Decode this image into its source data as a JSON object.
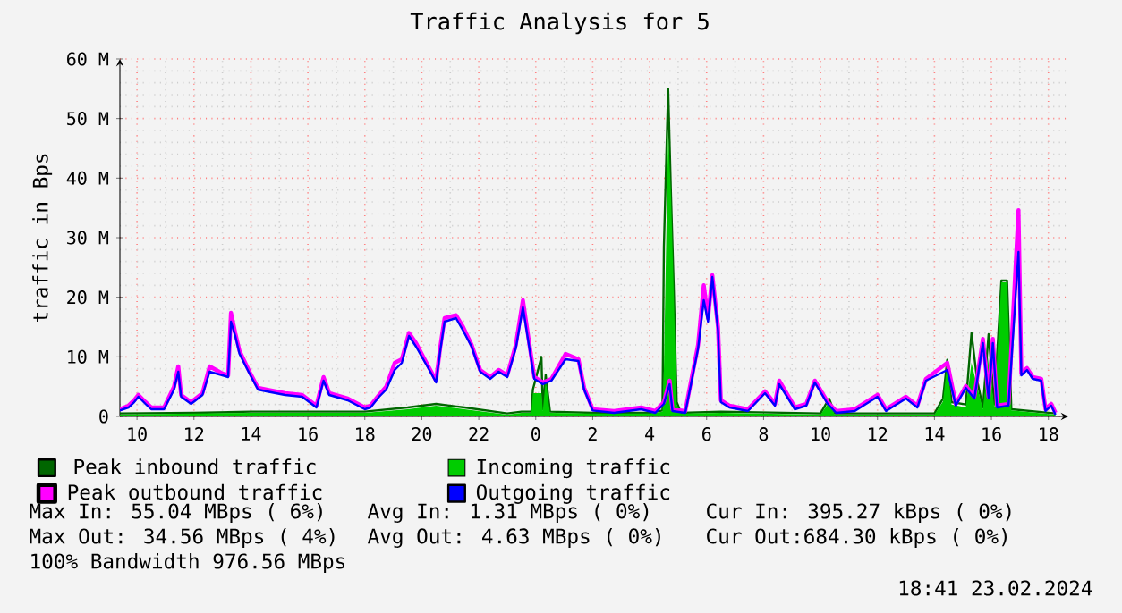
{
  "chart_data": {
    "type": "line",
    "title": "Traffic Analysis for 5",
    "ylabel": "traffic in Bps",
    "xlim": [
      "2024-02-22T09:24",
      "2024-02-23T18:42"
    ],
    "ylim": [
      0,
      60
    ],
    "xticks": [
      {
        "value": "2024-02-22T10:00",
        "label": "10"
      },
      {
        "value": "2024-02-22T12:00",
        "label": "12"
      },
      {
        "value": "2024-02-22T14:00",
        "label": "14"
      },
      {
        "value": "2024-02-22T16:00",
        "label": "16"
      },
      {
        "value": "2024-02-22T18:00",
        "label": "18"
      },
      {
        "value": "2024-02-22T20:00",
        "label": "20"
      },
      {
        "value": "2024-02-22T22:00",
        "label": "22"
      },
      {
        "value": "2024-02-23T00:00",
        "label": "0"
      },
      {
        "value": "2024-02-23T02:00",
        "label": "2"
      },
      {
        "value": "2024-02-23T04:00",
        "label": "4"
      },
      {
        "value": "2024-02-23T06:00",
        "label": "6"
      },
      {
        "value": "2024-02-23T08:00",
        "label": "8"
      },
      {
        "value": "2024-02-23T10:00",
        "label": "10"
      },
      {
        "value": "2024-02-23T12:00",
        "label": "12"
      },
      {
        "value": "2024-02-23T14:00",
        "label": "14"
      },
      {
        "value": "2024-02-23T16:00",
        "label": "16"
      },
      {
        "value": "2024-02-23T18:00",
        "label": "18"
      }
    ],
    "yticks": [
      0,
      {
        "value": 10,
        "label": "10 M"
      },
      {
        "value": 20,
        "label": "20 M"
      },
      {
        "value": 30,
        "label": "30 M"
      },
      {
        "value": 40,
        "label": "40 M"
      },
      {
        "value": 50,
        "label": "50 M"
      },
      {
        "value": 60,
        "label": "60 M"
      }
    ],
    "grid": true,
    "legend": "bottom",
    "series": [
      {
        "name": "Peak inbound traffic",
        "color": "#006600",
        "x": [
          "2024-02-22T09:24",
          "2024-02-22T12:00",
          "2024-02-22T14:00",
          "2024-02-22T18:00",
          "2024-02-22T19:30",
          "2024-02-22T20:30",
          "2024-02-22T21:30",
          "2024-02-22T23:00",
          "2024-02-22T23:30",
          "2024-02-22T23:51",
          "2024-02-22T23:54",
          "2024-02-23T00:12",
          "2024-02-23T00:15",
          "2024-02-23T00:21",
          "2024-02-23T00:30",
          "2024-02-23T02:00",
          "2024-02-23T04:00",
          "2024-02-23T04:27",
          "2024-02-23T04:30",
          "2024-02-23T04:39",
          "2024-02-23T04:45",
          "2024-02-23T04:51",
          "2024-02-23T04:57",
          "2024-02-23T05:06",
          "2024-02-23T06:30",
          "2024-02-23T10:00",
          "2024-02-23T10:18",
          "2024-02-23T10:30",
          "2024-02-23T14:00",
          "2024-02-23T14:18",
          "2024-02-23T14:27",
          "2024-02-23T14:36",
          "2024-02-23T15:06",
          "2024-02-23T15:18",
          "2024-02-23T15:30",
          "2024-02-23T15:42",
          "2024-02-23T15:54",
          "2024-02-23T16:06",
          "2024-02-23T16:21",
          "2024-02-23T16:33",
          "2024-02-23T16:42",
          "2024-02-23T18:15"
        ],
        "values": [
          0.5,
          0.6,
          0.8,
          0.8,
          1.5,
          2.1,
          1.5,
          0.5,
          0.8,
          0.8,
          4.5,
          10,
          1.2,
          7,
          0.8,
          0.6,
          0.6,
          1,
          28.5,
          55,
          37,
          21,
          2.4,
          0.6,
          0.8,
          0.5,
          3,
          0.5,
          0.5,
          3,
          9.5,
          2.4,
          2,
          14,
          6,
          1.5,
          13.8,
          2,
          22.8,
          22.8,
          1.2,
          0.5
        ]
      },
      {
        "name": "Incoming traffic",
        "type": "area",
        "color": "#00cc00",
        "x": [
          "2024-02-22T09:24",
          "2024-02-22T12:00",
          "2024-02-22T14:00",
          "2024-02-22T18:00",
          "2024-02-22T19:30",
          "2024-02-22T20:30",
          "2024-02-22T21:30",
          "2024-02-22T23:00",
          "2024-02-22T23:30",
          "2024-02-22T23:51",
          "2024-02-22T23:54",
          "2024-02-23T00:12",
          "2024-02-23T00:15",
          "2024-02-23T00:21",
          "2024-02-23T00:30",
          "2024-02-23T02:00",
          "2024-02-23T04:00",
          "2024-02-23T04:27",
          "2024-02-23T04:30",
          "2024-02-23T04:39",
          "2024-02-23T04:45",
          "2024-02-23T04:51",
          "2024-02-23T04:57",
          "2024-02-23T05:06",
          "2024-02-23T06:30",
          "2024-02-23T10:00",
          "2024-02-23T10:18",
          "2024-02-23T10:30",
          "2024-02-23T14:00",
          "2024-02-23T14:18",
          "2024-02-23T14:27",
          "2024-02-23T14:36",
          "2024-02-23T15:06",
          "2024-02-23T15:18",
          "2024-02-23T15:30",
          "2024-02-23T15:42",
          "2024-02-23T15:54",
          "2024-02-23T16:06",
          "2024-02-23T16:21",
          "2024-02-23T16:33",
          "2024-02-23T16:42",
          "2024-02-23T18:15"
        ],
        "values": [
          0.3,
          0.5,
          0.6,
          0.6,
          1.2,
          1.8,
          1.2,
          0.3,
          0.6,
          0.6,
          3.9,
          3.9,
          0.9,
          6,
          0.6,
          0.5,
          0.5,
          0.8,
          7.8,
          48,
          37,
          20,
          2,
          0.5,
          0.6,
          0.3,
          2.4,
          0.3,
          0.3,
          2.5,
          9,
          2,
          1.5,
          9,
          5,
          1.2,
          9.9,
          1.5,
          22.5,
          22.5,
          1,
          0.3
        ]
      },
      {
        "name": "Peak outbound traffic",
        "color": "#ff00ff",
        "x": [
          "2024-02-22T09:24",
          "2024-02-22T09:42",
          "2024-02-22T09:54",
          "2024-02-22T10:03",
          "2024-02-22T10:18",
          "2024-02-22T10:30",
          "2024-02-22T10:57",
          "2024-02-22T11:18",
          "2024-02-22T11:27",
          "2024-02-22T11:33",
          "2024-02-22T11:54",
          "2024-02-22T12:18",
          "2024-02-22T12:33",
          "2024-02-22T13:00",
          "2024-02-22T13:12",
          "2024-02-22T13:18",
          "2024-02-22T13:27",
          "2024-02-22T13:36",
          "2024-02-22T13:57",
          "2024-02-22T14:15",
          "2024-02-22T14:33",
          "2024-02-22T15:12",
          "2024-02-22T15:48",
          "2024-02-22T16:18",
          "2024-02-22T16:33",
          "2024-02-22T16:45",
          "2024-02-22T17:24",
          "2024-02-22T18:00",
          "2024-02-22T18:12",
          "2024-02-22T18:30",
          "2024-02-22T18:45",
          "2024-02-22T19:03",
          "2024-02-22T19:18",
          "2024-02-22T19:33",
          "2024-02-22T19:48",
          "2024-02-22T20:03",
          "2024-02-22T20:18",
          "2024-02-22T20:30",
          "2024-02-22T20:39",
          "2024-02-22T20:48",
          "2024-02-22T21:12",
          "2024-02-22T21:27",
          "2024-02-22T21:45",
          "2024-02-22T22:03",
          "2024-02-22T22:24",
          "2024-02-22T22:42",
          "2024-02-22T23:00",
          "2024-02-22T23:18",
          "2024-02-22T23:33",
          "2024-02-22T23:45",
          "2024-02-22T23:57",
          "2024-02-23T00:15",
          "2024-02-23T00:33",
          "2024-02-23T01:03",
          "2024-02-23T01:30",
          "2024-02-23T01:42",
          "2024-02-23T02:00",
          "2024-02-23T02:45",
          "2024-02-23T03:42",
          "2024-02-23T04:12",
          "2024-02-23T04:30",
          "2024-02-23T04:42",
          "2024-02-23T04:48",
          "2024-02-23T05:15",
          "2024-02-23T05:42",
          "2024-02-23T05:54",
          "2024-02-23T06:03",
          "2024-02-23T06:12",
          "2024-02-23T06:24",
          "2024-02-23T06:30",
          "2024-02-23T06:48",
          "2024-02-23T07:27",
          "2024-02-23T08:03",
          "2024-02-23T08:24",
          "2024-02-23T08:33",
          "2024-02-23T09:06",
          "2024-02-23T09:30",
          "2024-02-23T09:48",
          "2024-02-23T10:15",
          "2024-02-23T10:33",
          "2024-02-23T11:12",
          "2024-02-23T12:00",
          "2024-02-23T12:18",
          "2024-02-23T13:00",
          "2024-02-23T13:24",
          "2024-02-23T13:42",
          "2024-02-23T14:27",
          "2024-02-23T14:45",
          "2024-02-23T15:06",
          "2024-02-23T15:24",
          "2024-02-23T15:42",
          "2024-02-23T15:54",
          "2024-02-23T16:03",
          "2024-02-23T16:12",
          "2024-02-23T16:36",
          "2024-02-23T16:57",
          "2024-02-23T17:03",
          "2024-02-23T17:15",
          "2024-02-23T17:27",
          "2024-02-23T17:45",
          "2024-02-23T17:54",
          "2024-02-23T18:06",
          "2024-02-23T18:15"
        ],
        "values": [
          1.2,
          1.8,
          2.7,
          3.6,
          2.4,
          1.5,
          1.5,
          5,
          8.4,
          3.6,
          2.4,
          3.9,
          8.4,
          7.2,
          6.9,
          17.4,
          14,
          11,
          7.5,
          4.8,
          4.5,
          3.9,
          3.6,
          1.8,
          6.6,
          3.9,
          3,
          1.5,
          1.8,
          3.6,
          5,
          9,
          9.6,
          14,
          12.3,
          10,
          7.8,
          6,
          11.7,
          16.5,
          17,
          15,
          12,
          7.8,
          6.6,
          7.8,
          6.9,
          12,
          19.5,
          13,
          6.6,
          5.7,
          6.3,
          10.5,
          9.6,
          4.8,
          1.2,
          0.9,
          1.5,
          0.9,
          2.4,
          6,
          1.2,
          0.9,
          12,
          22,
          16.5,
          23.7,
          15,
          2.7,
          1.8,
          1.2,
          4.2,
          2.1,
          6,
          1.5,
          2.1,
          6,
          2.4,
          0.9,
          1.2,
          3.6,
          1.2,
          3.3,
          1.8,
          6.3,
          9,
          2.1,
          5.1,
          3.3,
          13,
          3.3,
          13,
          1.8,
          2.1,
          34.6,
          7.2,
          8.1,
          6.6,
          6.3,
          1.2,
          2.1,
          0.6
        ]
      },
      {
        "name": "Outgoing traffic",
        "color": "#0000ff",
        "x": [
          "2024-02-22T09:24",
          "2024-02-22T09:42",
          "2024-02-22T09:54",
          "2024-02-22T10:03",
          "2024-02-22T10:18",
          "2024-02-22T10:30",
          "2024-02-22T10:57",
          "2024-02-22T11:18",
          "2024-02-22T11:27",
          "2024-02-22T11:33",
          "2024-02-22T11:54",
          "2024-02-22T12:18",
          "2024-02-22T12:33",
          "2024-02-22T13:00",
          "2024-02-22T13:12",
          "2024-02-22T13:18",
          "2024-02-22T13:27",
          "2024-02-22T13:36",
          "2024-02-22T13:57",
          "2024-02-22T14:15",
          "2024-02-22T14:33",
          "2024-02-22T15:12",
          "2024-02-22T15:48",
          "2024-02-22T16:18",
          "2024-02-22T16:33",
          "2024-02-22T16:45",
          "2024-02-22T17:24",
          "2024-02-22T18:00",
          "2024-02-22T18:12",
          "2024-02-22T18:30",
          "2024-02-22T18:45",
          "2024-02-22T19:03",
          "2024-02-22T19:18",
          "2024-02-22T19:33",
          "2024-02-22T19:48",
          "2024-02-22T20:03",
          "2024-02-22T20:18",
          "2024-02-22T20:30",
          "2024-02-22T20:39",
          "2024-02-22T20:48",
          "2024-02-22T21:12",
          "2024-02-22T21:27",
          "2024-02-22T21:45",
          "2024-02-22T22:03",
          "2024-02-22T22:24",
          "2024-02-22T22:42",
          "2024-02-22T23:00",
          "2024-02-22T23:18",
          "2024-02-22T23:33",
          "2024-02-22T23:45",
          "2024-02-22T23:57",
          "2024-02-23T00:15",
          "2024-02-23T00:33",
          "2024-02-23T01:03",
          "2024-02-23T01:30",
          "2024-02-23T01:42",
          "2024-02-23T02:00",
          "2024-02-23T02:45",
          "2024-02-23T03:42",
          "2024-02-23T04:12",
          "2024-02-23T04:30",
          "2024-02-23T04:42",
          "2024-02-23T04:48",
          "2024-02-23T05:15",
          "2024-02-23T05:42",
          "2024-02-23T05:54",
          "2024-02-23T06:03",
          "2024-02-23T06:12",
          "2024-02-23T06:24",
          "2024-02-23T06:30",
          "2024-02-23T06:48",
          "2024-02-23T07:27",
          "2024-02-23T08:03",
          "2024-02-23T08:24",
          "2024-02-23T08:33",
          "2024-02-23T09:06",
          "2024-02-23T09:30",
          "2024-02-23T09:48",
          "2024-02-23T10:15",
          "2024-02-23T10:33",
          "2024-02-23T11:12",
          "2024-02-23T12:00",
          "2024-02-23T12:18",
          "2024-02-23T13:00",
          "2024-02-23T13:24",
          "2024-02-23T13:42",
          "2024-02-23T14:27",
          "2024-02-23T14:45",
          "2024-02-23T15:06",
          "2024-02-23T15:24",
          "2024-02-23T15:42",
          "2024-02-23T15:54",
          "2024-02-23T16:03",
          "2024-02-23T16:12",
          "2024-02-23T16:36",
          "2024-02-23T16:57",
          "2024-02-23T17:03",
          "2024-02-23T17:15",
          "2024-02-23T17:27",
          "2024-02-23T17:45",
          "2024-02-23T17:54",
          "2024-02-23T18:06",
          "2024-02-23T18:15"
        ],
        "values": [
          1,
          1.5,
          2.4,
          3.3,
          2.1,
          1.2,
          1.2,
          4.5,
          7.5,
          3.3,
          2.1,
          3.6,
          7.5,
          6.9,
          6.6,
          15.9,
          13.5,
          10.5,
          7.2,
          4.5,
          4.2,
          3.6,
          3.3,
          1.5,
          6,
          3.6,
          2.7,
          1.2,
          1.5,
          3.3,
          4.5,
          7.8,
          9,
          13.5,
          11.7,
          9.6,
          7.5,
          5.7,
          11.1,
          15.9,
          16.5,
          14.4,
          11.7,
          7.5,
          6.3,
          7.5,
          6.6,
          11.4,
          18.3,
          12.3,
          6.3,
          5.4,
          6,
          9.6,
          9.3,
          4.5,
          1,
          0.6,
          1.2,
          0.6,
          2.1,
          5.4,
          0.9,
          0.6,
          11.4,
          19.5,
          15.9,
          23.4,
          14.4,
          2.4,
          1.5,
          0.9,
          3.9,
          1.8,
          5.4,
          1.2,
          1.8,
          5.7,
          2.1,
          0.6,
          0.9,
          3.3,
          0.9,
          3,
          1.5,
          6,
          7.8,
          1.8,
          4.8,
          3,
          12.3,
          3,
          12.3,
          1.5,
          1.8,
          27.6,
          6.9,
          7.8,
          6.3,
          6,
          0.9,
          1.8,
          0.3
        ]
      }
    ],
    "annotations": [
      "Max In:  55.04 MBps ( 6%)",
      "Avg In:   1.31 MBps ( 0%)",
      "Cur In: 395.27 kBps ( 0%)",
      "Max Out: 34.56 MBps ( 4%)",
      "Avg Out:  4.63 MBps ( 0%)",
      "Cur Out:684.30 kBps ( 0%)",
      "100% Bandwidth 976.56 MBps",
      "18:41 23.02.2024"
    ]
  }
}
